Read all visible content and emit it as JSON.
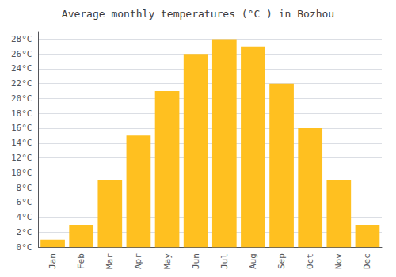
{
  "chart_data": {
    "type": "bar",
    "title": "Average monthly temperatures (°C ) in Bozhou",
    "categories": [
      "Jan",
      "Feb",
      "Mar",
      "Apr",
      "May",
      "Jun",
      "Jul",
      "Aug",
      "Sep",
      "Oct",
      "Nov",
      "Dec"
    ],
    "values": [
      1,
      3,
      9,
      15,
      21,
      26,
      28,
      27,
      22,
      16,
      9,
      3
    ],
    "color": "#FFC020",
    "ylim": [
      0,
      29
    ],
    "yticks": [
      {
        "value": 0,
        "label": "0°C"
      },
      {
        "value": 2,
        "label": "2°C"
      },
      {
        "value": 4,
        "label": "4°C"
      },
      {
        "value": 6,
        "label": "6°C"
      },
      {
        "value": 8,
        "label": "8°C"
      },
      {
        "value": 10,
        "label": "10°C"
      },
      {
        "value": 12,
        "label": "12°C"
      },
      {
        "value": 14,
        "label": "14°C"
      },
      {
        "value": 16,
        "label": "16°C"
      },
      {
        "value": 18,
        "label": "18°C"
      },
      {
        "value": 20,
        "label": "20°C"
      },
      {
        "value": 22,
        "label": "22°C"
      },
      {
        "value": 24,
        "label": "24°C"
      },
      {
        "value": 26,
        "label": "26°C"
      },
      {
        "value": 28,
        "label": "28°C"
      }
    ],
    "grid": true
  }
}
